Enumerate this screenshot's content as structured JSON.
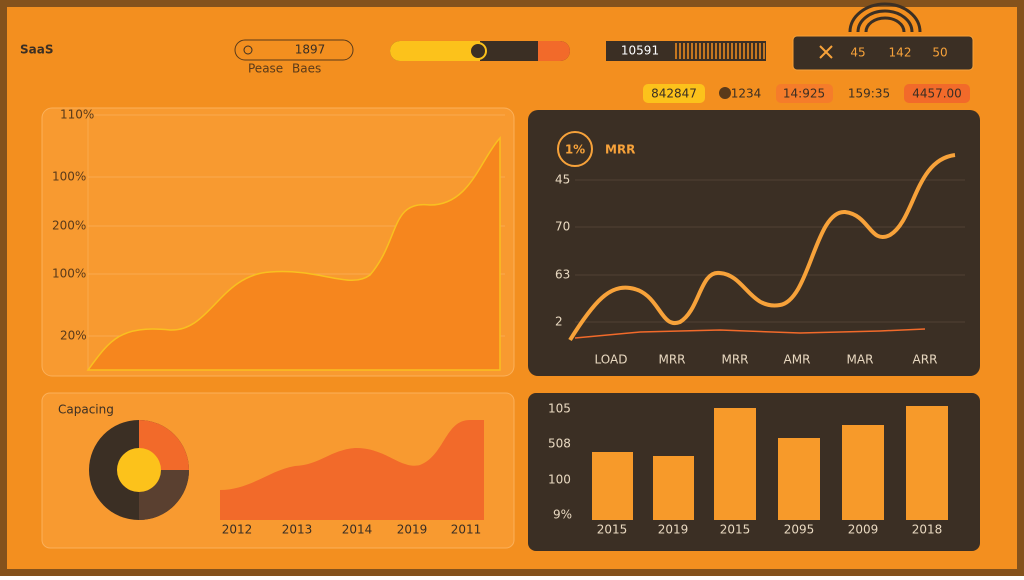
{
  "header": {
    "title": "SaaS",
    "pill": {
      "value": "1897",
      "captions": [
        "Pease",
        "Baes"
      ]
    },
    "counter": "10591",
    "stats": [
      "45",
      "142",
      "50"
    ]
  },
  "chips": [
    "842847",
    "1234",
    "14:925",
    "159:35",
    "4457.00"
  ],
  "growth_panel": {
    "y_labels": [
      "110%",
      "100%",
      "200%",
      "100%",
      "20%"
    ]
  },
  "mrr_panel": {
    "badge": "1%",
    "title": "MRR",
    "y_labels": [
      "45",
      "70",
      "63",
      "2"
    ],
    "x_labels": [
      "LOAD",
      "MRR",
      "MRR",
      "AMR",
      "MAR",
      "ARR"
    ]
  },
  "capacity_panel": {
    "title": "Capacing",
    "x_labels": [
      "2012",
      "2013",
      "2014",
      "2019",
      "2011"
    ]
  },
  "bar_panel": {
    "y_labels": [
      "105",
      "508",
      "100",
      "9%"
    ],
    "x_labels": [
      "2015",
      "2019",
      "2015",
      "2095",
      "2009",
      "2018"
    ]
  }
}
